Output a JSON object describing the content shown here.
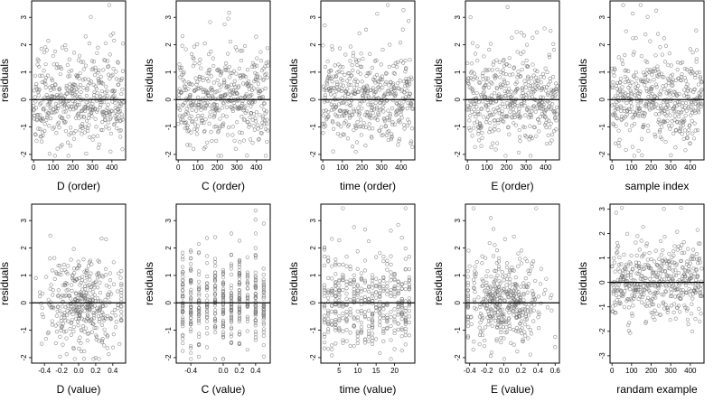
{
  "chart_data": [
    {
      "type": "scatter",
      "xlabel": "D (order)",
      "ylabel": "residuals",
      "xlim": [
        -10,
        470
      ],
      "ylim": [
        -2.2,
        3.6
      ],
      "xticks": [
        "0",
        "100",
        "200",
        "300",
        "400"
      ],
      "xtick_values": [
        0,
        100,
        200,
        300,
        400
      ],
      "yticks": [
        "-2",
        "-1",
        "0",
        "1",
        "2",
        "3"
      ],
      "ytick_values": [
        -2,
        -1,
        0,
        1,
        2,
        3
      ],
      "reference_line_y": 0,
      "n_points": 460,
      "x_kind": "index",
      "seed": 11
    },
    {
      "type": "scatter",
      "xlabel": "C (order)",
      "ylabel": "residuals",
      "xlim": [
        -10,
        470
      ],
      "ylim": [
        -2.2,
        3.6
      ],
      "xticks": [
        "0",
        "100",
        "200",
        "300",
        "400"
      ],
      "xtick_values": [
        0,
        100,
        200,
        300,
        400
      ],
      "yticks": [
        "-2",
        "-1",
        "0",
        "1",
        "2",
        "3"
      ],
      "ytick_values": [
        -2,
        -1,
        0,
        1,
        2,
        3
      ],
      "reference_line_y": 0,
      "n_points": 460,
      "x_kind": "index",
      "seed": 23
    },
    {
      "type": "scatter",
      "xlabel": "time (order)",
      "ylabel": "residuals",
      "xlim": [
        -10,
        470
      ],
      "ylim": [
        -2.2,
        3.6
      ],
      "xticks": [
        "0",
        "100",
        "200",
        "300",
        "400"
      ],
      "xtick_values": [
        0,
        100,
        200,
        300,
        400
      ],
      "yticks": [
        "-2",
        "-1",
        "0",
        "1",
        "2",
        "3"
      ],
      "ytick_values": [
        -2,
        -1,
        0,
        1,
        2,
        3
      ],
      "reference_line_y": 0,
      "n_points": 460,
      "x_kind": "index",
      "seed": 37
    },
    {
      "type": "scatter",
      "xlabel": "E (order)",
      "ylabel": "residuals",
      "xlim": [
        -10,
        470
      ],
      "ylim": [
        -2.2,
        3.6
      ],
      "xticks": [
        "0",
        "100",
        "200",
        "300",
        "400"
      ],
      "xtick_values": [
        0,
        100,
        200,
        300,
        400
      ],
      "yticks": [
        "-2",
        "-1",
        "0",
        "1",
        "2",
        "3"
      ],
      "ytick_values": [
        -2,
        -1,
        0,
        1,
        2,
        3
      ],
      "reference_line_y": 0,
      "n_points": 460,
      "x_kind": "index",
      "seed": 41
    },
    {
      "type": "scatter",
      "xlabel": "sample index",
      "ylabel": "residuals",
      "xlim": [
        -10,
        470
      ],
      "ylim": [
        -2.2,
        3.6
      ],
      "xticks": [
        "0",
        "100",
        "200",
        "300",
        "400"
      ],
      "xtick_values": [
        0,
        100,
        200,
        300,
        400
      ],
      "yticks": [
        "-2",
        "-1",
        "0",
        "1",
        "2",
        "3"
      ],
      "ytick_values": [
        -2,
        -1,
        0,
        1,
        2,
        3
      ],
      "reference_line_y": 0,
      "n_points": 460,
      "x_kind": "index",
      "seed": 53
    },
    {
      "type": "scatter",
      "xlabel": "D (value)",
      "ylabel": "residuals",
      "xlim": [
        -0.55,
        0.55
      ],
      "ylim": [
        -2.2,
        3.6
      ],
      "xticks": [
        "-0.4",
        "-0.2",
        "0.0",
        "0.2",
        "0.4"
      ],
      "xtick_values": [
        -0.4,
        -0.2,
        0.0,
        0.2,
        0.4
      ],
      "yticks": [
        "-2",
        "-1",
        "0",
        "1",
        "2",
        "3"
      ],
      "ytick_values": [
        -2,
        -1,
        0,
        1,
        2,
        3
      ],
      "reference_line_y": 0,
      "n_points": 400,
      "x_kind": "continuous",
      "x_range": [
        -0.5,
        0.5
      ],
      "x_center": 0.05,
      "x_spread": 0.22,
      "seed": 61
    },
    {
      "type": "scatter",
      "xlabel": "C (value)",
      "ylabel": "residuals",
      "xlim": [
        -0.58,
        0.58
      ],
      "ylim": [
        -2.2,
        3.6
      ],
      "xticks": [
        "-0.4",
        "0.0",
        "0.2",
        "0.4"
      ],
      "xtick_values": [
        -0.4,
        0.0,
        0.2,
        0.4
      ],
      "yticks": [
        "-2",
        "-1",
        "0",
        "1",
        "2",
        "3"
      ],
      "ytick_values": [
        -2,
        -1,
        0,
        1,
        2,
        3
      ],
      "reference_line_y": 0,
      "n_points": 440,
      "x_kind": "levels",
      "x_levels": [
        -0.5,
        -0.4,
        -0.3,
        -0.2,
        -0.1,
        0.0,
        0.1,
        0.2,
        0.3,
        0.4,
        0.5
      ],
      "seed": 71
    },
    {
      "type": "scatter",
      "xlabel": "time (value)",
      "ylabel": "residuals",
      "xlim": [
        0,
        25.5
      ],
      "ylim": [
        -2.2,
        3.6
      ],
      "xticks": [
        "5",
        "10",
        "15",
        "20"
      ],
      "xtick_values": [
        5,
        10,
        15,
        20
      ],
      "yticks": [
        "-2",
        "-1",
        "0",
        "1",
        "2",
        "3"
      ],
      "ytick_values": [
        -2,
        -1,
        0,
        1,
        2,
        3
      ],
      "reference_line_y": 0,
      "n_points": 440,
      "x_kind": "levels",
      "x_levels": [
        1,
        2,
        3,
        4,
        5,
        6,
        7,
        8,
        9,
        10,
        11,
        12,
        13,
        14,
        15,
        16,
        17,
        18,
        19,
        20,
        21,
        22,
        23,
        24
      ],
      "seed": 83
    },
    {
      "type": "scatter",
      "xlabel": "E (value)",
      "ylabel": "residuals",
      "xlim": [
        -0.45,
        0.65
      ],
      "ylim": [
        -2.2,
        3.6
      ],
      "xticks": [
        "-0.4",
        "-0.2",
        "0.0",
        "0.2",
        "0.4",
        "0.6"
      ],
      "xtick_values": [
        -0.4,
        -0.2,
        0.0,
        0.2,
        0.4,
        0.6
      ],
      "yticks": [
        "-2",
        "-1",
        "0",
        "1",
        "2",
        "3"
      ],
      "ytick_values": [
        -2,
        -1,
        0,
        1,
        2,
        3
      ],
      "reference_line_y": 0,
      "n_points": 420,
      "x_kind": "continuous",
      "x_range": [
        -0.42,
        0.6
      ],
      "x_center": 0.0,
      "x_spread": 0.25,
      "seed": 97
    },
    {
      "type": "scatter",
      "xlabel": "randam example",
      "ylabel": "residuals",
      "xlim": [
        -10,
        470
      ],
      "ylim": [
        -3.3,
        3.2
      ],
      "xticks": [
        "0",
        "100",
        "200",
        "300",
        "400"
      ],
      "xtick_values": [
        0,
        100,
        200,
        300,
        400
      ],
      "yticks": [
        "-3",
        "-2",
        "-1",
        "0",
        "1",
        "2",
        "3"
      ],
      "ytick_values": [
        -3,
        -2,
        -1,
        0,
        1,
        2,
        3
      ],
      "reference_line_y": 0,
      "n_points": 460,
      "x_kind": "index",
      "seed": 109
    }
  ]
}
